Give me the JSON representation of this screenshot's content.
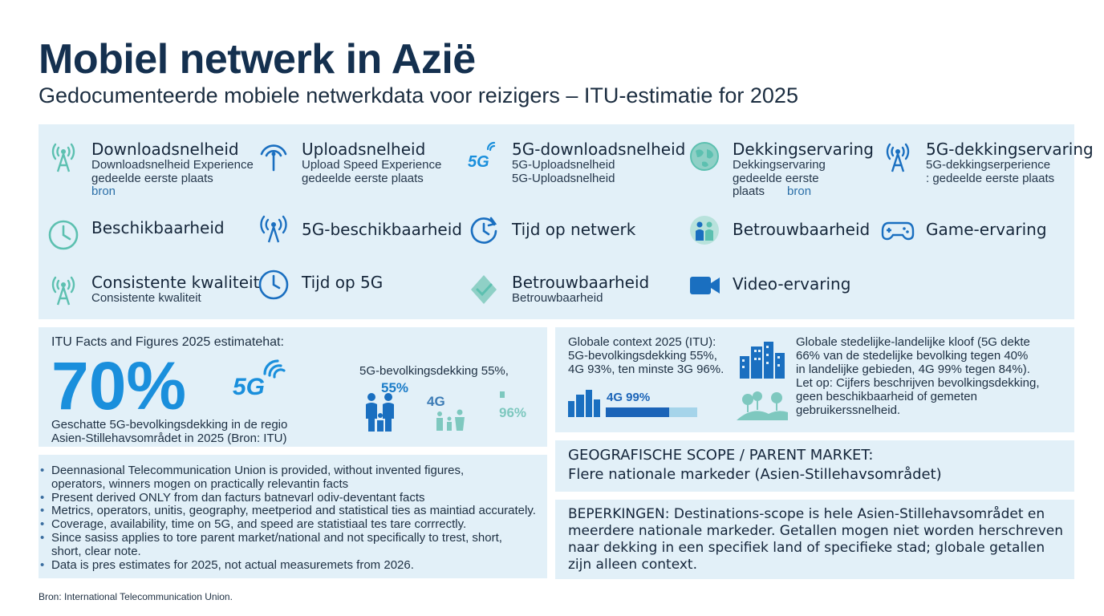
{
  "header": {
    "title": "Mobiel netwerk in Azië",
    "subtitle": "Gedocumenteerde mobiele netwerkdata voor reizigers – ITU-estimatie for 2025"
  },
  "metrics": [
    {
      "title": "Downloadsnelheid",
      "sub": [
        "Downloadsnelheid Experience",
        "gedeelde eerste plaats",
        "bron"
      ],
      "icon": "signal-tower-icon"
    },
    {
      "title": "Uploadsnelheid",
      "sub": [
        "Upload Speed Experience",
        "gedeelde eerste plaats"
      ],
      "icon": "broadcast-antenna-icon"
    },
    {
      "title": "5G-downloadsnelheid",
      "sub": [
        "5G-Uploadsnelheid",
        "5G-Uploadsnelheid"
      ],
      "icon": "5g-icon"
    },
    {
      "title": "Dekkingservaring",
      "sub": [
        "Dekkingservaring",
        "gedeelde eerste",
        "plaats",
        "bron"
      ],
      "icon": "globe-icon"
    },
    {
      "title": "5G-dekkingservaring",
      "sub": [
        "5G-dekkingserperience",
        ": gedeelde eerste plaats"
      ],
      "icon": "5g-tower-icon"
    },
    {
      "title": "Beschikbaarheid",
      "icon": "clock-icon"
    },
    {
      "title": "5G-beschikbaarheid",
      "icon": "antenna-icon"
    },
    {
      "title": "Tijd op netwerk",
      "icon": "refresh-clock-icon"
    },
    {
      "title": "Betrouwbaarheid",
      "icon": "people-icon"
    },
    {
      "title": "Game-ervaring",
      "icon": "gamepad-icon"
    },
    {
      "title": "Consistente kwaliteit",
      "sub": [
        "Consistente kwaliteit"
      ],
      "icon": "tower-icon"
    },
    {
      "title": "Tijd op 5G",
      "icon": "clock-icon"
    },
    {
      "title": "Betrouwbaarheid",
      "sub": [
        "Betrouwbaarheid"
      ],
      "icon": "shield-check-icon"
    },
    {
      "title": "Video-ervaring",
      "icon": "video-camera-icon"
    }
  ],
  "itu": {
    "heading": "ITU Facts and Figures 2025 estimatehat:",
    "big_value": "70%",
    "description": [
      "Geschatte 5G-bevolkingsdekking in de regio",
      "Asien-Stillehavsområdet in 2025 (Bron: ITU)"
    ],
    "logo_text": "5G",
    "population_label": "5G-bevolkingsdekking 55%,",
    "value_55": "55%",
    "value_4g": "4G",
    "value_96": "96%"
  },
  "notes": [
    "Deennasional Telecommunication Union is provided, without invented figures,",
    "operators, winners mogen on practically relevantin facts",
    "Present derived ONLY from dan facturs batnevarl odiv-deventant facts",
    "Metrics, operators, unitis, geography, meetperiod and statistical ties as maintiad accurately.",
    "Coverage, availability, time on 5G, and speed are statistiaal tes tare corrrectly.",
    "Since sasiss applies to tore parent market/national and not specifically to trest, short,",
    "short, clear note.",
    "Data is pres estimates for 2025, not actual measuremets from 2026."
  ],
  "source": "Bron: International Telecommunication Union.",
  "global": {
    "left_lines": [
      "Globale context 2025 (ITU):",
      "5G-bevolkingsdekking 55%,",
      "4G 93%, ten minste 3G 96%."
    ],
    "bar_label": "4G 99%",
    "bar_fraction": 0.69,
    "right_lines": [
      "Globale stedelijke-landelijke kloof (5G dekte",
      "66% van de stedelijke bevolking tegen 40%",
      "in landelijke gebieden, 4G 99% tegen 84%).",
      "Let op: Cijfers beschrijven bevolkingsdekking,",
      "geen beschikbaarheid of gemeten",
      "gebruikerssnelheid."
    ]
  },
  "scope": {
    "heading": "GEOGRAFISCHE SCOPE / PARENT MARKET:",
    "value": "Flere nationale markeder (Asien-Stillehavsområdet)"
  },
  "limits": {
    "label": "BEPERKINGEN:",
    "lines": [
      " Destinations-scope is hele Asien-Stillehavsområdet en",
      "meerdere nationale markeder. Getallen mogen niet worden herschreven",
      "naar dekking in een specifiek land of specifieke stad; globale getallen",
      "zijn alleen context."
    ]
  },
  "colors": {
    "accent": "#1a8fdc",
    "panel": "#e2f0f8",
    "title": "#14304f",
    "teal": "#5cc0b0"
  }
}
